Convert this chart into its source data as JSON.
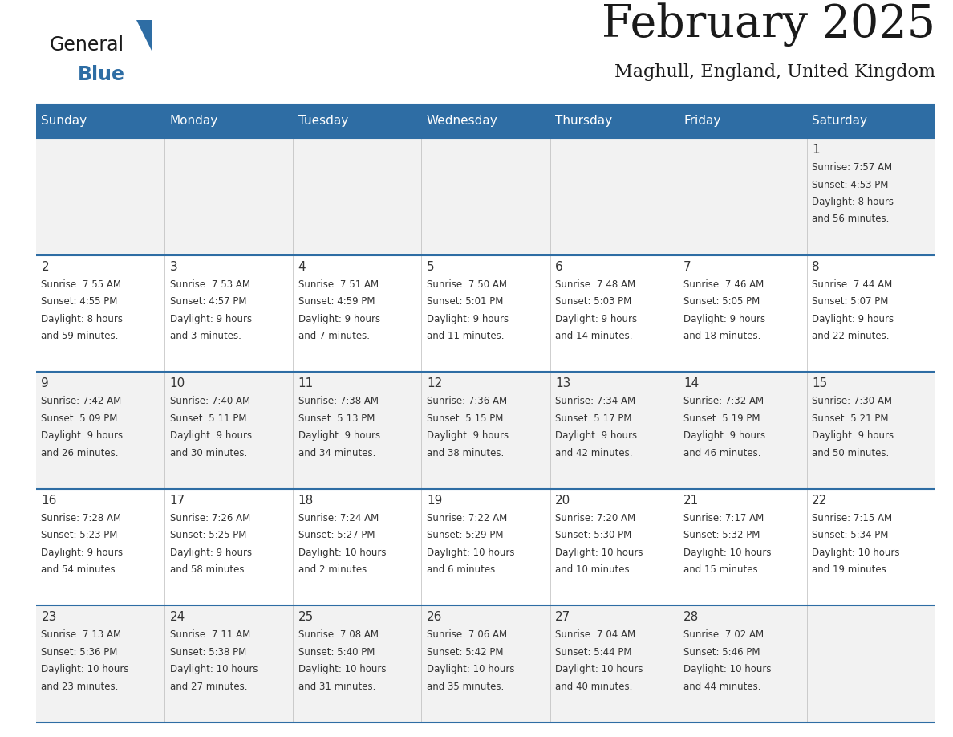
{
  "title": "February 2025",
  "subtitle": "Maghull, England, United Kingdom",
  "days_of_week": [
    "Sunday",
    "Monday",
    "Tuesday",
    "Wednesday",
    "Thursday",
    "Friday",
    "Saturday"
  ],
  "header_bg": "#2E6DA4",
  "header_text_color": "#FFFFFF",
  "cell_bg_light": "#F2F2F2",
  "cell_bg_white": "#FFFFFF",
  "separator_color": "#2E6DA4",
  "text_color": "#333333",
  "calendar_data": [
    [
      {
        "day": null,
        "sunrise": null,
        "sunset": null,
        "daylight": null
      },
      {
        "day": null,
        "sunrise": null,
        "sunset": null,
        "daylight": null
      },
      {
        "day": null,
        "sunrise": null,
        "sunset": null,
        "daylight": null
      },
      {
        "day": null,
        "sunrise": null,
        "sunset": null,
        "daylight": null
      },
      {
        "day": null,
        "sunrise": null,
        "sunset": null,
        "daylight": null
      },
      {
        "day": null,
        "sunrise": null,
        "sunset": null,
        "daylight": null
      },
      {
        "day": 1,
        "sunrise": "7:57 AM",
        "sunset": "4:53 PM",
        "daylight": "8 hours\nand 56 minutes."
      }
    ],
    [
      {
        "day": 2,
        "sunrise": "7:55 AM",
        "sunset": "4:55 PM",
        "daylight": "8 hours\nand 59 minutes."
      },
      {
        "day": 3,
        "sunrise": "7:53 AM",
        "sunset": "4:57 PM",
        "daylight": "9 hours\nand 3 minutes."
      },
      {
        "day": 4,
        "sunrise": "7:51 AM",
        "sunset": "4:59 PM",
        "daylight": "9 hours\nand 7 minutes."
      },
      {
        "day": 5,
        "sunrise": "7:50 AM",
        "sunset": "5:01 PM",
        "daylight": "9 hours\nand 11 minutes."
      },
      {
        "day": 6,
        "sunrise": "7:48 AM",
        "sunset": "5:03 PM",
        "daylight": "9 hours\nand 14 minutes."
      },
      {
        "day": 7,
        "sunrise": "7:46 AM",
        "sunset": "5:05 PM",
        "daylight": "9 hours\nand 18 minutes."
      },
      {
        "day": 8,
        "sunrise": "7:44 AM",
        "sunset": "5:07 PM",
        "daylight": "9 hours\nand 22 minutes."
      }
    ],
    [
      {
        "day": 9,
        "sunrise": "7:42 AM",
        "sunset": "5:09 PM",
        "daylight": "9 hours\nand 26 minutes."
      },
      {
        "day": 10,
        "sunrise": "7:40 AM",
        "sunset": "5:11 PM",
        "daylight": "9 hours\nand 30 minutes."
      },
      {
        "day": 11,
        "sunrise": "7:38 AM",
        "sunset": "5:13 PM",
        "daylight": "9 hours\nand 34 minutes."
      },
      {
        "day": 12,
        "sunrise": "7:36 AM",
        "sunset": "5:15 PM",
        "daylight": "9 hours\nand 38 minutes."
      },
      {
        "day": 13,
        "sunrise": "7:34 AM",
        "sunset": "5:17 PM",
        "daylight": "9 hours\nand 42 minutes."
      },
      {
        "day": 14,
        "sunrise": "7:32 AM",
        "sunset": "5:19 PM",
        "daylight": "9 hours\nand 46 minutes."
      },
      {
        "day": 15,
        "sunrise": "7:30 AM",
        "sunset": "5:21 PM",
        "daylight": "9 hours\nand 50 minutes."
      }
    ],
    [
      {
        "day": 16,
        "sunrise": "7:28 AM",
        "sunset": "5:23 PM",
        "daylight": "9 hours\nand 54 minutes."
      },
      {
        "day": 17,
        "sunrise": "7:26 AM",
        "sunset": "5:25 PM",
        "daylight": "9 hours\nand 58 minutes."
      },
      {
        "day": 18,
        "sunrise": "7:24 AM",
        "sunset": "5:27 PM",
        "daylight": "10 hours\nand 2 minutes."
      },
      {
        "day": 19,
        "sunrise": "7:22 AM",
        "sunset": "5:29 PM",
        "daylight": "10 hours\nand 6 minutes."
      },
      {
        "day": 20,
        "sunrise": "7:20 AM",
        "sunset": "5:30 PM",
        "daylight": "10 hours\nand 10 minutes."
      },
      {
        "day": 21,
        "sunrise": "7:17 AM",
        "sunset": "5:32 PM",
        "daylight": "10 hours\nand 15 minutes."
      },
      {
        "day": 22,
        "sunrise": "7:15 AM",
        "sunset": "5:34 PM",
        "daylight": "10 hours\nand 19 minutes."
      }
    ],
    [
      {
        "day": 23,
        "sunrise": "7:13 AM",
        "sunset": "5:36 PM",
        "daylight": "10 hours\nand 23 minutes."
      },
      {
        "day": 24,
        "sunrise": "7:11 AM",
        "sunset": "5:38 PM",
        "daylight": "10 hours\nand 27 minutes."
      },
      {
        "day": 25,
        "sunrise": "7:08 AM",
        "sunset": "5:40 PM",
        "daylight": "10 hours\nand 31 minutes."
      },
      {
        "day": 26,
        "sunrise": "7:06 AM",
        "sunset": "5:42 PM",
        "daylight": "10 hours\nand 35 minutes."
      },
      {
        "day": 27,
        "sunrise": "7:04 AM",
        "sunset": "5:44 PM",
        "daylight": "10 hours\nand 40 minutes."
      },
      {
        "day": 28,
        "sunrise": "7:02 AM",
        "sunset": "5:46 PM",
        "daylight": "10 hours\nand 44 minutes."
      },
      {
        "day": null,
        "sunrise": null,
        "sunset": null,
        "daylight": null
      }
    ]
  ],
  "figsize": [
    11.88,
    9.18
  ],
  "dpi": 100
}
